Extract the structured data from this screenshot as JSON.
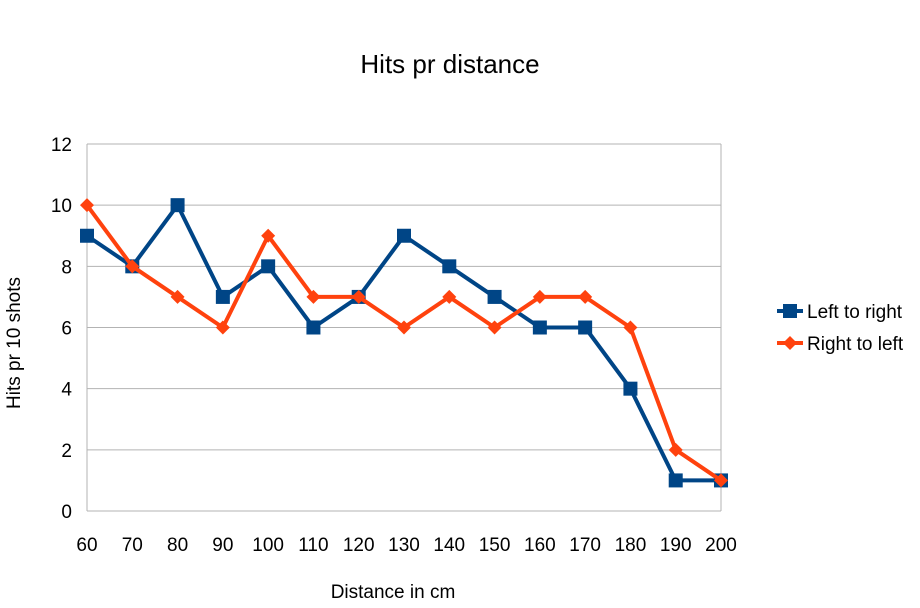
{
  "chart_data": {
    "type": "line",
    "title": "Hits pr distance",
    "xlabel": "Distance in cm",
    "ylabel": "Hits pr 10 shots",
    "categories": [
      "60",
      "70",
      "80",
      "90",
      "100",
      "110",
      "120",
      "130",
      "140",
      "150",
      "160",
      "170",
      "180",
      "190",
      "200"
    ],
    "ylim": [
      0,
      12
    ],
    "yticks": [
      "0",
      "2",
      "4",
      "6",
      "8",
      "10",
      "12"
    ],
    "grid": true,
    "legend_position": "right",
    "series": [
      {
        "name": "Left to right",
        "color": "#004586",
        "marker": "square",
        "values": [
          9,
          8,
          10,
          7,
          8,
          6,
          7,
          9,
          8,
          7,
          6,
          6,
          4,
          1,
          1
        ]
      },
      {
        "name": "Right to left",
        "color": "#ff420e",
        "marker": "diamond",
        "values": [
          10,
          8,
          7,
          6,
          9,
          7,
          7,
          6,
          7,
          6,
          7,
          7,
          6,
          2,
          1
        ]
      }
    ]
  }
}
